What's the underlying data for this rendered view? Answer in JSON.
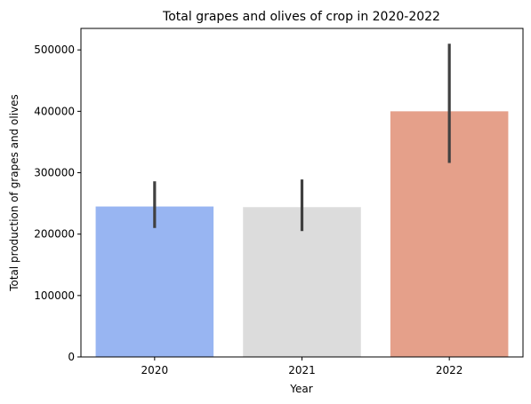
{
  "chart_data": {
    "type": "bar",
    "title": "Total grapes and olives of crop in 2020-2022",
    "xlabel": "Year",
    "ylabel": "Total production of grapes and olives",
    "categories": [
      "2020",
      "2021",
      "2022"
    ],
    "values": [
      245000,
      244000,
      400000
    ],
    "error_bars": [
      {
        "low": 210000,
        "high": 286000
      },
      {
        "low": 205000,
        "high": 289000
      },
      {
        "low": 316000,
        "high": 510000
      }
    ],
    "colors": [
      "#98b5f2",
      "#dcdcdc",
      "#e5a08a"
    ],
    "error_color": "#404040",
    "ylim": [
      0,
      535000
    ],
    "yticks": [
      0,
      100000,
      200000,
      300000,
      400000,
      500000
    ],
    "grid": false,
    "legend": "none"
  }
}
